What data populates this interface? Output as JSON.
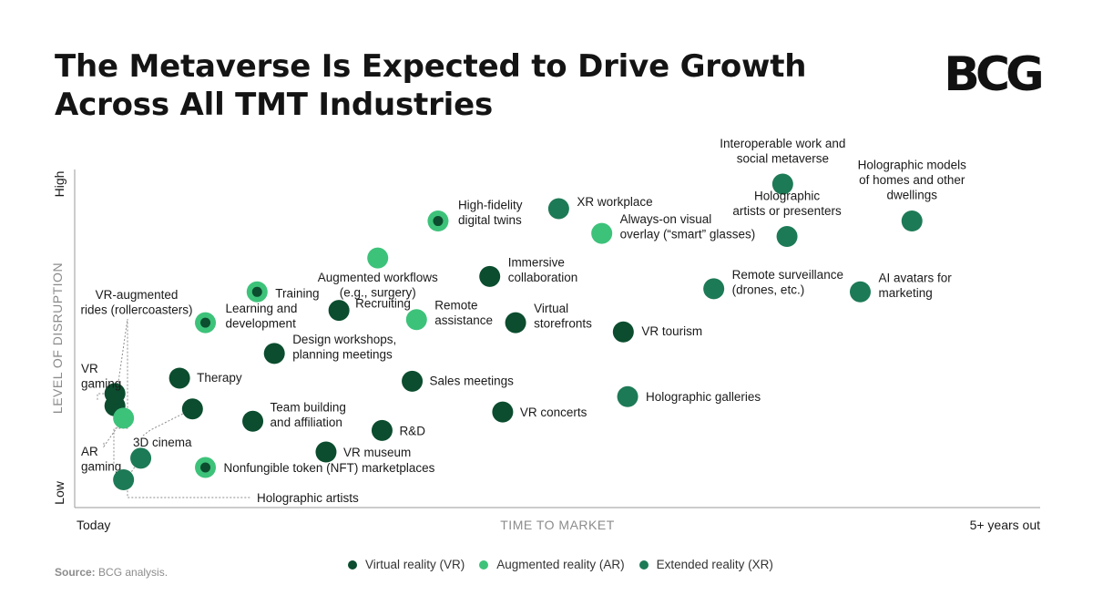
{
  "header": {
    "title_line1": "The Metaverse Is Expected to Drive Growth",
    "title_line2": "Across All TMT Industries",
    "logo_text": "BCG"
  },
  "source": {
    "label": "Source:",
    "text": "BCG analysis."
  },
  "colors": {
    "vr": "#0b4d2e",
    "ar": "#3dc27a",
    "xr": "#1d7a56",
    "axis": "#9a9a9a",
    "axis_label": "#8c8c8c",
    "text": "#1a1a1a"
  },
  "chart_data": {
    "type": "scatter",
    "xlabel": "TIME TO MARKET",
    "ylabel": "LEVEL OF DISRUPTION",
    "x_ticks": [
      "Today",
      "5+ years out"
    ],
    "y_ticks": [
      "Low",
      "High"
    ],
    "xlim": [
      0,
      100
    ],
    "ylim": [
      0,
      100
    ],
    "grid": false,
    "legend_position": "bottom-center",
    "series": [
      {
        "name": "Virtual reality (VR)",
        "key": "vr"
      },
      {
        "name": "Augmented reality (AR)",
        "key": "ar"
      },
      {
        "name": "Extended reality (XR)",
        "key": "xr"
      }
    ],
    "points": [
      {
        "label": "Interoperable work and social metaverse",
        "lines": [
          "Interoperable work and",
          "social metaverse"
        ],
        "series": "xr",
        "x": 79,
        "y": 100
      },
      {
        "label": "Holographic models of homes and other dwellings",
        "lines": [
          "Holographic models",
          "of homes and other",
          "dwellings"
        ],
        "series": "xr",
        "x": 94,
        "y": 88
      },
      {
        "label": "XR workplace",
        "lines": [
          "XR workplace"
        ],
        "series": "xr",
        "x": 53,
        "y": 92
      },
      {
        "label": "High-fidelity digital twins",
        "lines": [
          "High-fidelity",
          "digital twins"
        ],
        "series": "ar",
        "x": 39,
        "y": 88,
        "ring": true
      },
      {
        "label": "Always-on visual overlay (“smart” glasses)",
        "lines": [
          "Always-on visual",
          "overlay (“smart” glasses)"
        ],
        "series": "ar",
        "x": 58,
        "y": 84
      },
      {
        "label": "Holographic artists or presenters",
        "lines": [
          "Holographic",
          "artists or presenters"
        ],
        "series": "xr",
        "x": 79.5,
        "y": 83
      },
      {
        "label": "Augmented workflows (e.g., surgery)",
        "lines": [
          "Augmented workflows",
          "(e.g., surgery)"
        ],
        "series": "ar",
        "x": 32,
        "y": 76
      },
      {
        "label": "Immersive collaboration",
        "lines": [
          "Immersive",
          "collaboration"
        ],
        "series": "vr",
        "x": 45,
        "y": 70
      },
      {
        "label": "Remote surveillance (drones, etc.)",
        "lines": [
          "Remote surveillance",
          "(drones, etc.)"
        ],
        "series": "xr",
        "x": 71,
        "y": 66
      },
      {
        "label": "AI avatars for marketing",
        "lines": [
          "AI avatars for",
          "marketing"
        ],
        "series": "xr",
        "x": 88,
        "y": 65
      },
      {
        "label": "Training",
        "lines": [
          "Training"
        ],
        "series": "ar",
        "x": 18,
        "y": 65,
        "ring": true
      },
      {
        "label": "VR-augmented rides (rollercoasters)",
        "lines": [
          "VR-augmented",
          "rides (rollercoasters)"
        ],
        "series": "vr",
        "x": 1.5,
        "y": 28
      },
      {
        "label": "Recruiting",
        "lines": [
          "Recruiting"
        ],
        "series": "vr",
        "x": 27.5,
        "y": 59
      },
      {
        "label": "Remote assistance",
        "lines": [
          "Remote",
          "assistance"
        ],
        "series": "ar",
        "x": 36.5,
        "y": 56
      },
      {
        "label": "Virtual storefronts",
        "lines": [
          "Virtual",
          "storefronts"
        ],
        "series": "vr",
        "x": 48,
        "y": 55
      },
      {
        "label": "Learning and development",
        "lines": [
          "Learning and",
          "development"
        ],
        "series": "ar",
        "x": 12,
        "y": 55,
        "ring": true
      },
      {
        "label": "VR tourism",
        "lines": [
          "VR tourism"
        ],
        "series": "vr",
        "x": 60.5,
        "y": 52
      },
      {
        "label": "Design workshops, planning meetings",
        "lines": [
          "Design workshops,",
          "planning meetings"
        ],
        "series": "vr",
        "x": 20,
        "y": 45
      },
      {
        "label": "Therapy",
        "lines": [
          "Therapy"
        ],
        "series": "vr",
        "x": 9,
        "y": 37
      },
      {
        "label": "Sales meetings",
        "lines": [
          "Sales meetings"
        ],
        "series": "vr",
        "x": 36,
        "y": 36
      },
      {
        "label": "VR gaming",
        "lines": [
          "VR",
          "gaming"
        ],
        "series": "vr",
        "x": 1.5,
        "y": 32
      },
      {
        "label": "AR gaming",
        "lines": [
          "AR",
          "gaming"
        ],
        "series": "ar",
        "x": 2.5,
        "y": 24
      },
      {
        "label": "Holographic galleries",
        "lines": [
          "Holographic galleries"
        ],
        "series": "xr",
        "x": 61,
        "y": 31
      },
      {
        "label": "3D cinema",
        "lines": [
          "3D cinema"
        ],
        "series": "vr",
        "x": 10.5,
        "y": 27
      },
      {
        "label": "VR concerts",
        "lines": [
          "VR concerts"
        ],
        "series": "vr",
        "x": 46.5,
        "y": 26
      },
      {
        "label": "Team building and affiliation",
        "lines": [
          "Team building",
          "and affiliation"
        ],
        "series": "vr",
        "x": 17.5,
        "y": 23
      },
      {
        "label": "R&D",
        "lines": [
          "R&D"
        ],
        "series": "vr",
        "x": 32.5,
        "y": 20
      },
      {
        "label": "VR museum",
        "lines": [
          "VR museum"
        ],
        "series": "vr",
        "x": 26,
        "y": 13
      },
      {
        "label": "Nonfungible token (NFT) marketplaces",
        "lines": [
          "Nonfungible token (NFT) marketplaces"
        ],
        "series": "ar",
        "x": 12,
        "y": 8,
        "ring": true
      },
      {
        "label": "Holographic artists",
        "lines": [
          "Holographic artists"
        ],
        "series": "xr",
        "x": 4.5,
        "y": 11
      },
      {
        "label": "",
        "lines": [],
        "series": "xr",
        "x": 2.5,
        "y": 4
      }
    ]
  }
}
